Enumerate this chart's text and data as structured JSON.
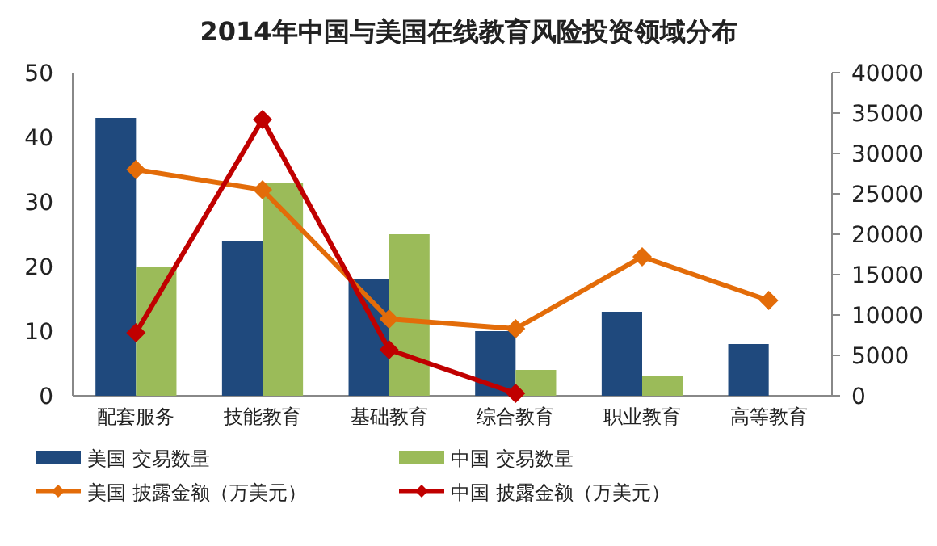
{
  "chart_data": {
    "type": "bar",
    "title": "2014年中国与美国在线教育风险投资领域分布",
    "categories": [
      "配套服务",
      "技能教育",
      "基础教育",
      "综合教育",
      "职业教育",
      "高等教育"
    ],
    "series": [
      {
        "name": "美国 交易数量",
        "color": "#1f497d",
        "values": [
          43,
          24,
          18,
          10,
          13,
          8
        ]
      },
      {
        "name": "中国 交易数量",
        "color": "#9bbb59",
        "values": [
          20,
          33,
          25,
          4,
          3,
          null
        ]
      },
      {
        "name": "美国 披露金额（万美元）",
        "type": "line",
        "axis": "y2",
        "color": "#e36c09",
        "values": [
          28000,
          25500,
          9500,
          8300,
          17200,
          11800
        ]
      },
      {
        "name": "中国 披露金额（万美元）",
        "type": "line",
        "axis": "y2",
        "color": "#c00000",
        "values": [
          7800,
          34200,
          5700,
          300,
          null,
          null
        ]
      }
    ],
    "ylim": [
      0,
      50
    ],
    "yticks": [
      0,
      10,
      20,
      30,
      40,
      50
    ],
    "y2lim": [
      0,
      40000
    ],
    "y2ticks": [
      0,
      5000,
      10000,
      15000,
      20000,
      25000,
      30000,
      35000,
      40000
    ],
    "marker": "diamond",
    "grid": false,
    "legend": "bottom"
  }
}
